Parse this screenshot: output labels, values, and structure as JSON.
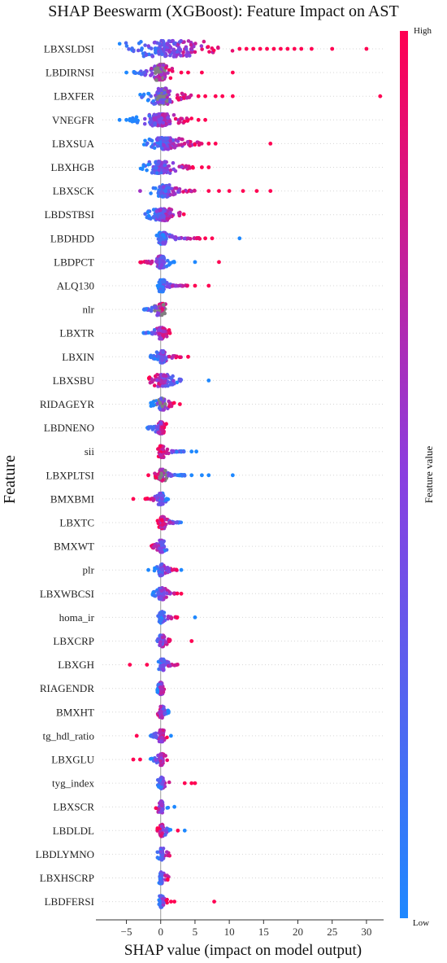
{
  "chart_data": {
    "type": "scatter",
    "subtype": "shap-beeswarm",
    "title": "SHAP Beeswarm (XGBoost): Feature Impact on AST",
    "xlabel": "SHAP value (impact on model output)",
    "ylabel": "Feature",
    "xlim": [
      -8.5,
      32.5
    ],
    "xticks": [
      -5,
      0,
      5,
      10,
      15,
      20,
      25,
      30
    ],
    "xtick_labels": [
      "−5",
      "0",
      "5",
      "10",
      "15",
      "20",
      "25",
      "30"
    ],
    "grid": false,
    "zero_line": true,
    "colorbar": {
      "label": "Feature value",
      "high_label": "High",
      "low_label": "Low",
      "low_color": "#1e88ff",
      "mid_color": "#8a3ee0",
      "high_color": "#ff0052",
      "missing_color": "#808080"
    },
    "features": [
      {
        "name": "LBXSLDSI",
        "main": [
          -6.0,
          10.5
        ],
        "dense": [
          -3.5,
          6.0
        ],
        "lowSide": -1,
        "outliers": [
          [
            11.5,
            1
          ],
          [
            12.5,
            1
          ],
          [
            13.5,
            1
          ],
          [
            14.5,
            1
          ],
          [
            15.5,
            1
          ],
          [
            16.5,
            1
          ],
          [
            17.5,
            1
          ],
          [
            18.5,
            1
          ],
          [
            19.5,
            1
          ],
          [
            20.5,
            1
          ],
          [
            22,
            1
          ],
          [
            25,
            1
          ],
          [
            30,
            1
          ]
        ]
      },
      {
        "name": "LBDIRNSI",
        "main": [
          -4.0,
          2.0
        ],
        "dense": [
          -1.0,
          1.0
        ],
        "lowSide": -1,
        "outliers": [
          [
            -5,
            0
          ],
          [
            3,
            1
          ],
          [
            4,
            1
          ],
          [
            6,
            1
          ],
          [
            10.5,
            1
          ]
        ],
        "grey": true
      },
      {
        "name": "LBXFER",
        "main": [
          -3.0,
          4.5
        ],
        "dense": [
          -1.0,
          1.5
        ],
        "lowSide": -1,
        "outliers": [
          [
            5.5,
            1
          ],
          [
            6.5,
            1
          ],
          [
            8,
            1
          ],
          [
            9,
            1
          ],
          [
            10.5,
            1
          ],
          [
            32,
            1
          ]
        ],
        "grey": true
      },
      {
        "name": "VNEGFR",
        "main": [
          -4.5,
          4.5
        ],
        "dense": [
          -2.0,
          2.0
        ],
        "lowSide": -1,
        "outliers": [
          [
            -6,
            0
          ],
          [
            -5,
            0
          ],
          [
            5.5,
            1
          ],
          [
            6.5,
            1
          ]
        ]
      },
      {
        "name": "LBXSUA",
        "main": [
          -2.5,
          6.0
        ],
        "dense": [
          -1.0,
          2.5
        ],
        "lowSide": -1,
        "outliers": [
          [
            7,
            1
          ],
          [
            8,
            1
          ],
          [
            16,
            1
          ]
        ]
      },
      {
        "name": "LBXHGB",
        "main": [
          -3.0,
          5.0
        ],
        "dense": [
          -1.5,
          1.5
        ],
        "lowSide": -1,
        "outliers": [
          [
            6,
            1
          ],
          [
            7,
            1
          ]
        ]
      },
      {
        "name": "LBXSCK",
        "main": [
          -1.5,
          5.5
        ],
        "dense": [
          -0.5,
          1.5
        ],
        "lowSide": -1,
        "outliers": [
          [
            -3,
            0.6
          ],
          [
            7,
            1
          ],
          [
            8.5,
            1
          ],
          [
            10,
            1
          ],
          [
            12,
            1
          ],
          [
            14,
            1
          ],
          [
            16,
            1
          ]
        ]
      },
      {
        "name": "LBDSTBSI",
        "main": [
          -2.5,
          3.5
        ],
        "dense": [
          -1.0,
          1.5
        ],
        "lowSide": -1,
        "outliers": []
      },
      {
        "name": "LBDHDD",
        "main": [
          -1.0,
          6.0
        ],
        "dense": [
          -0.5,
          1.0
        ],
        "lowSide": -1,
        "outliers": [
          [
            6.5,
            1
          ],
          [
            7.5,
            1
          ],
          [
            11.5,
            0
          ]
        ]
      },
      {
        "name": "LBDPCT",
        "main": [
          -3.0,
          2.0
        ],
        "dense": [
          -0.5,
          0.7
        ],
        "lowSide": 1,
        "outliers": [
          [
            5,
            0
          ],
          [
            8.5,
            1
          ]
        ]
      },
      {
        "name": "ALQ130",
        "main": [
          -0.5,
          4.0
        ],
        "dense": [
          -0.3,
          0.6
        ],
        "lowSide": -1,
        "outliers": [
          [
            5,
            1
          ],
          [
            7,
            1
          ]
        ]
      },
      {
        "name": "nlr",
        "main": [
          -2.5,
          1.0
        ],
        "dense": [
          -0.5,
          0.7
        ],
        "lowSide": -1,
        "outliers": [],
        "grey": true
      },
      {
        "name": "LBXTR",
        "main": [
          -2.5,
          1.5
        ],
        "dense": [
          -0.5,
          0.8
        ],
        "lowSide": -1,
        "outliers": []
      },
      {
        "name": "LBXIN",
        "main": [
          -1.5,
          3.0
        ],
        "dense": [
          -0.4,
          0.8
        ],
        "lowSide": -1,
        "outliers": [
          [
            4,
            1
          ]
        ]
      },
      {
        "name": "LBXSBU",
        "main": [
          -2.0,
          3.5
        ],
        "dense": [
          -0.8,
          1.5
        ],
        "lowSide": 1,
        "outliers": [
          [
            7,
            0
          ]
        ]
      },
      {
        "name": "RIDAGEYR",
        "main": [
          -1.5,
          2.0
        ],
        "dense": [
          -0.5,
          0.8
        ],
        "lowSide": -1,
        "outliers": [
          [
            2.8,
            1
          ]
        ],
        "grey": true
      },
      {
        "name": "LBDNENO",
        "main": [
          -2.0,
          1.0
        ],
        "dense": [
          -0.5,
          0.6
        ],
        "lowSide": -1,
        "outliers": []
      },
      {
        "name": "sii",
        "main": [
          -0.5,
          3.5
        ],
        "dense": [
          -0.3,
          0.5
        ],
        "lowSide": 1,
        "outliers": [
          [
            4.5,
            0
          ],
          [
            5.2,
            0
          ]
        ]
      },
      {
        "name": "LBXPLTSI",
        "main": [
          -1.0,
          3.5
        ],
        "dense": [
          -0.3,
          0.6
        ],
        "lowSide": 1,
        "outliers": [
          [
            -1.8,
            1
          ],
          [
            4.5,
            0
          ],
          [
            6,
            0
          ],
          [
            7,
            0
          ],
          [
            10.5,
            0
          ]
        ],
        "grey": true
      },
      {
        "name": "BMXBMI",
        "main": [
          -2.5,
          1.2
        ],
        "dense": [
          -0.4,
          0.6
        ],
        "lowSide": 1,
        "outliers": [
          [
            -4,
            1
          ]
        ]
      },
      {
        "name": "LBXTC",
        "main": [
          -0.5,
          3.0
        ],
        "dense": [
          -0.2,
          0.7
        ],
        "lowSide": 1,
        "outliers": []
      },
      {
        "name": "BMXWT",
        "main": [
          -1.5,
          1.2
        ],
        "dense": [
          -0.3,
          0.6
        ],
        "lowSide": 1,
        "outliers": []
      },
      {
        "name": "plr",
        "main": [
          -1.0,
          2.5
        ],
        "dense": [
          -0.3,
          0.6
        ],
        "lowSide": -1,
        "outliers": [
          [
            -1.8,
            0
          ],
          [
            3,
            0
          ]
        ]
      },
      {
        "name": "LBXWBCSI",
        "main": [
          -1.5,
          2.5
        ],
        "dense": [
          -0.3,
          0.6
        ],
        "lowSide": -1,
        "outliers": [
          [
            3,
            1
          ]
        ]
      },
      {
        "name": "homa_ir",
        "main": [
          -0.5,
          2.5
        ],
        "dense": [
          -0.3,
          0.6
        ],
        "lowSide": -1,
        "outliers": [
          [
            5,
            0
          ]
        ]
      },
      {
        "name": "LBXCRP",
        "main": [
          -1.0,
          1.5
        ],
        "dense": [
          -0.3,
          0.6
        ],
        "lowSide": -1,
        "outliers": [
          [
            4.5,
            1
          ]
        ]
      },
      {
        "name": "LBXGH",
        "main": [
          -0.5,
          2.5
        ],
        "dense": [
          -0.3,
          0.7
        ],
        "lowSide": -1,
        "outliers": [
          [
            -4.5,
            1
          ],
          [
            -2,
            1
          ]
        ]
      },
      {
        "name": "RIAGENDR",
        "main": [
          -0.5,
          0.5
        ],
        "dense": [
          -0.2,
          0.3
        ],
        "lowSide": -1,
        "outliers": []
      },
      {
        "name": "BMXHT",
        "main": [
          -0.5,
          1.2
        ],
        "dense": [
          -0.2,
          0.5
        ],
        "lowSide": 1,
        "outliers": []
      },
      {
        "name": "tg_hdl_ratio",
        "main": [
          -1.5,
          1.0
        ],
        "dense": [
          -0.3,
          0.5
        ],
        "lowSide": -1,
        "outliers": [
          [
            -3.5,
            1
          ],
          [
            1.5,
            0
          ]
        ]
      },
      {
        "name": "LBXGLU",
        "main": [
          -1.5,
          1.0
        ],
        "dense": [
          -0.3,
          0.5
        ],
        "lowSide": -1,
        "outliers": [
          [
            -4,
            1
          ],
          [
            -3,
            1
          ]
        ]
      },
      {
        "name": "tyg_index",
        "main": [
          -0.5,
          1.5
        ],
        "dense": [
          -0.2,
          0.5
        ],
        "lowSide": -1,
        "outliers": [
          [
            3.5,
            1
          ],
          [
            4.5,
            1
          ],
          [
            5,
            1
          ]
        ]
      },
      {
        "name": "LBXSCR",
        "main": [
          -1.0,
          1.2
        ],
        "dense": [
          -0.3,
          0.5
        ],
        "lowSide": 1,
        "outliers": [
          [
            2,
            0
          ]
        ]
      },
      {
        "name": "LBDLDL",
        "main": [
          -0.5,
          1.5
        ],
        "dense": [
          -0.2,
          0.5
        ],
        "lowSide": 1,
        "outliers": [
          [
            2.5,
            1
          ],
          [
            3.5,
            0
          ]
        ]
      },
      {
        "name": "LBDLYMNO",
        "main": [
          -0.5,
          1.5
        ],
        "dense": [
          -0.2,
          0.5
        ],
        "lowSide": -1,
        "outliers": []
      },
      {
        "name": "LBXHSCRP",
        "main": [
          -0.3,
          1.2
        ],
        "dense": [
          -0.2,
          0.4
        ],
        "lowSide": -1,
        "outliers": []
      },
      {
        "name": "LBDFERSI",
        "main": [
          -0.3,
          1.0
        ],
        "dense": [
          -0.2,
          0.4
        ],
        "lowSide": -1,
        "outliers": [
          [
            1.5,
            1
          ],
          [
            2,
            1
          ],
          [
            7.8,
            1
          ]
        ]
      }
    ]
  }
}
